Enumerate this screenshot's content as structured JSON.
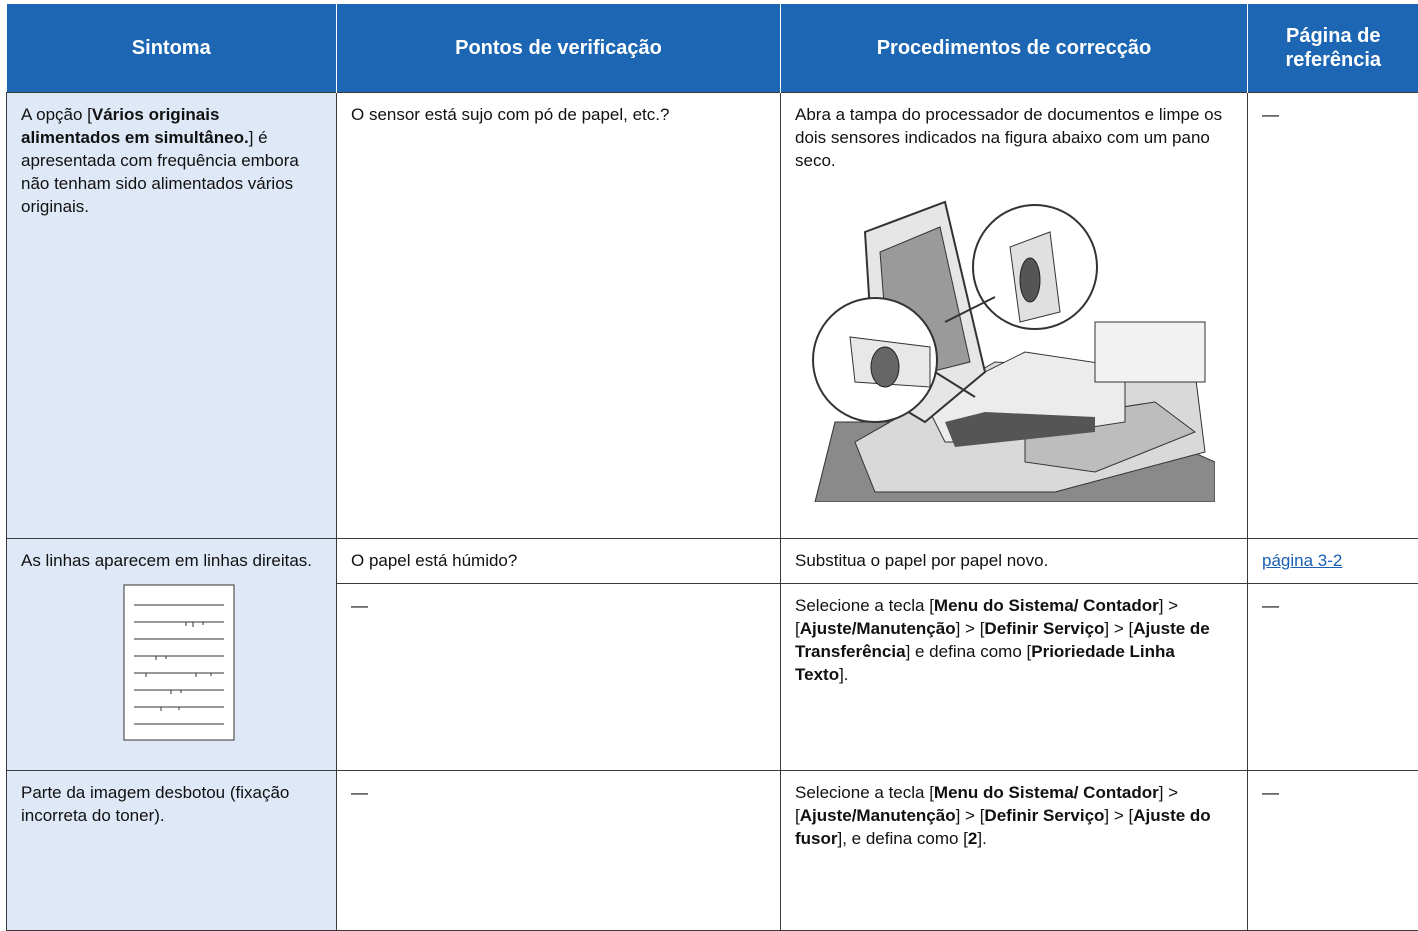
{
  "header": [
    "Sintoma",
    "Pontos de verificação",
    "Procedimentos de correcção",
    "Página de referência"
  ],
  "rows": [
    {
      "symptom": [
        "A opção [",
        {
          "text": "Vários originais alimentados em simultâneo.",
          "bold": true
        },
        "] é apresentada com frequência embora não tenham sido alimentados vários originais."
      ],
      "checks": [
        {
          "point": "O sensor está sujo com pó de papel, etc.?",
          "procedure": [
            "Abra a tampa do processador de documentos e limpe os dois sensores indicados na figura abaixo com um pano seco."
          ],
          "reference": "—"
        }
      ]
    },
    {
      "symptom": [
        "As linhas aparecem em linhas direitas."
      ],
      "checks": [
        {
          "point": "O papel está húmido?",
          "procedure": [
            "Substitua o papel por papel novo."
          ],
          "reference": "página 3-2"
        },
        {
          "point": "—",
          "procedure": [
            "Selecione a tecla [",
            {
              "text": "Menu do Sistema/ Contador",
              "bold": true
            },
            "] > [",
            {
              "text": "Ajuste/Manutenção",
              "bold": true
            },
            "] > [",
            {
              "text": "Definir Serviço",
              "bold": true
            },
            "] > [",
            {
              "text": "Ajuste de Transferência",
              "bold": true
            },
            "] e defina como [",
            {
              "text": "Prioriedade Linha Texto",
              "bold": true
            },
            "]."
          ],
          "reference": "—"
        }
      ]
    },
    {
      "symptom": [
        "Parte da imagem desbotou (fixação incorreta do toner)."
      ],
      "checks": [
        {
          "point": "—",
          "procedure": [
            "Selecione a tecla [",
            {
              "text": "Menu do Sistema/ Contador",
              "bold": true
            },
            "] > [",
            {
              "text": "Ajuste/Manutenção",
              "bold": true
            },
            "] > [",
            {
              "text": "Definir Serviço",
              "bold": true
            },
            "] > [",
            {
              "text": "Ajuste do fusor",
              "bold": true
            },
            "], e defina como [",
            {
              "text": "2",
              "bold": true
            },
            "]."
          ],
          "reference": "—"
        }
      ]
    }
  ]
}
